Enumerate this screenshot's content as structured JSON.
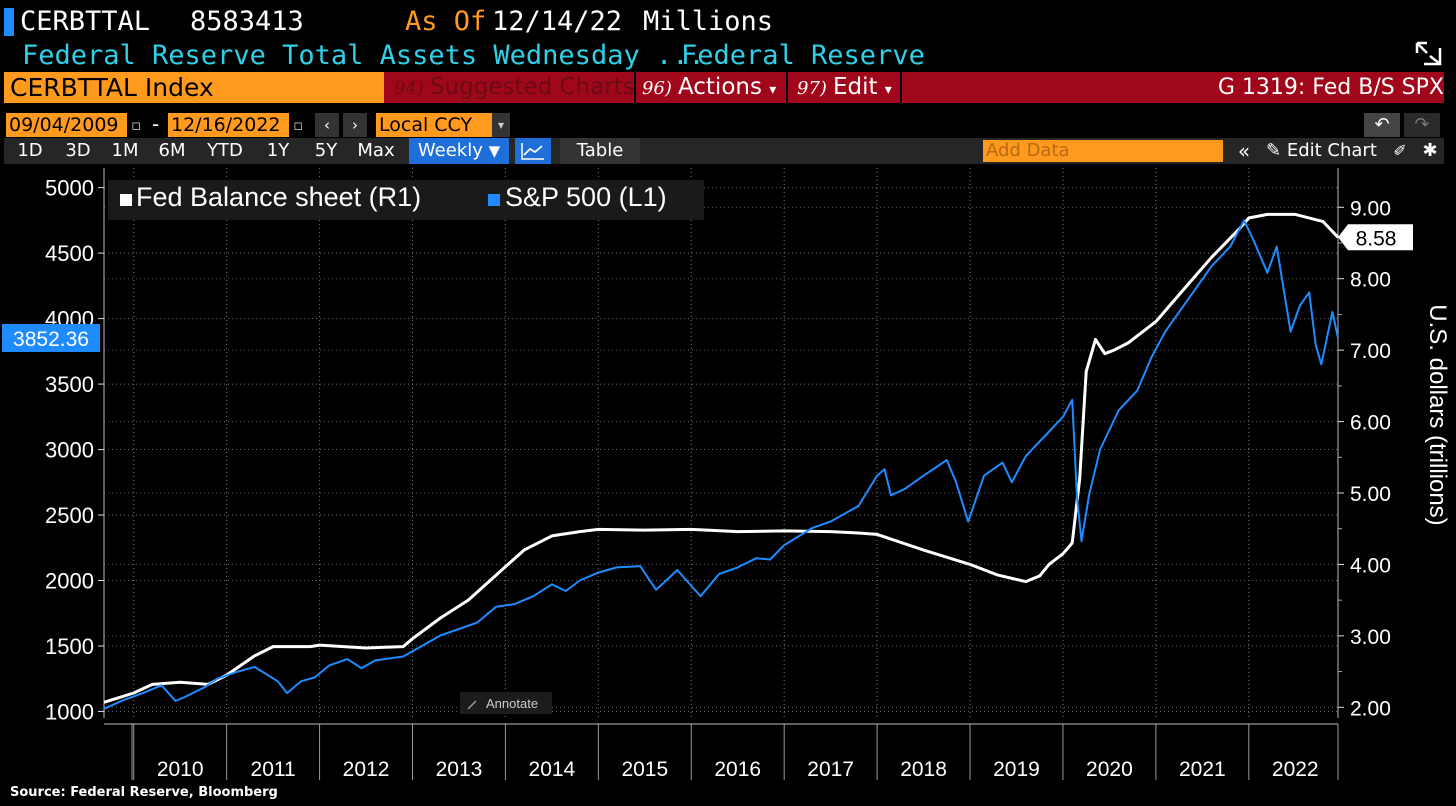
{
  "header": {
    "ticker": "CERBTTAL",
    "value": "8583413",
    "asof_label": "As Of",
    "asof_date": "12/14/22",
    "units": "Millions",
    "description": "Federal Reserve Total Assets Wednesday ...",
    "source_name": "Federal Reserve"
  },
  "toolbar": {
    "index_label": "CERBTTAL Index",
    "suggested_num": "94)",
    "suggested_label": "Suggested Charts",
    "actions_num": "96)",
    "actions_label": "Actions",
    "edit_num": "97)",
    "edit_label": "Edit",
    "chart_title": "G 1319: Fed B/S SPX",
    "dropdown_glyph": "▾"
  },
  "range": {
    "start_date": "09/04/2009",
    "end_date": "12/16/2022",
    "dash": "-",
    "currency": "Local CCY"
  },
  "periods": [
    "1D",
    "3D",
    "1M",
    "6M",
    "YTD",
    "1Y",
    "5Y",
    "Max"
  ],
  "frequency": "Weekly",
  "frequency_glyph": "▼",
  "table_label": "Table",
  "add_data_placeholder": "Add Data",
  "edit_chart_label": "Edit Chart",
  "colors": {
    "accent_orange": "#ff9a1f",
    "banner_red": "#a1071b",
    "cyan": "#2fd0e8",
    "spx_blue": "#1e8cff",
    "fed_white": "#ffffff"
  },
  "footer": "Source: Federal Reserve, Bloomberg",
  "chart_data": {
    "type": "line",
    "legend": [
      "Fed Balance sheet (R1)",
      "S&P 500 (L1)"
    ],
    "legend_position": "top-left",
    "grid": true,
    "x_labels": [
      "2010",
      "2011",
      "2012",
      "2013",
      "2014",
      "2015",
      "2016",
      "2017",
      "2018",
      "2019",
      "2020",
      "2021",
      "2022"
    ],
    "x_range": [
      2009.68,
      2022.96
    ],
    "left_axis": {
      "ylim": [
        950,
        5150
      ],
      "ticks": [
        1000,
        1500,
        2000,
        2500,
        3000,
        3500,
        4000,
        4500,
        5000
      ]
    },
    "right_axis": {
      "label": "U.S. dollars (trillions)",
      "ylim": [
        1.85,
        9.55
      ],
      "ticks": [
        2.0,
        3.0,
        4.0,
        5.0,
        6.0,
        7.0,
        8.0,
        9.0
      ],
      "tick_labels": [
        "2.00",
        "3.00",
        "4.00",
        "5.00",
        "6.00",
        "7.00",
        "8.00",
        "9.00"
      ]
    },
    "last_value_left": "3852.36",
    "last_value_right": "8.58",
    "annotate_label": "Annotate",
    "series": [
      {
        "name": "Fed Balance sheet (R1)",
        "axis": "right",
        "x": [
          2009.68,
          2010.0,
          2010.2,
          2010.5,
          2010.8,
          2011.0,
          2011.3,
          2011.5,
          2011.9,
          2012.0,
          2012.5,
          2012.9,
          2013.0,
          2013.3,
          2013.6,
          2013.9,
          2014.2,
          2014.5,
          2014.8,
          2015.0,
          2015.5,
          2016.0,
          2016.5,
          2017.0,
          2017.5,
          2017.8,
          2018.0,
          2018.5,
          2019.0,
          2019.3,
          2019.6,
          2019.75,
          2019.85,
          2019.95,
          2020.0,
          2020.1,
          2020.18,
          2020.25,
          2020.35,
          2020.45,
          2020.55,
          2020.7,
          2021.0,
          2021.3,
          2021.6,
          2021.9,
          2022.0,
          2022.2,
          2022.5,
          2022.8,
          2022.96
        ],
        "y": [
          2.07,
          2.2,
          2.32,
          2.35,
          2.32,
          2.45,
          2.72,
          2.85,
          2.85,
          2.87,
          2.83,
          2.85,
          2.96,
          3.25,
          3.5,
          3.85,
          4.2,
          4.4,
          4.46,
          4.49,
          4.48,
          4.49,
          4.46,
          4.47,
          4.46,
          4.44,
          4.42,
          4.2,
          4.0,
          3.85,
          3.76,
          3.84,
          4.0,
          4.1,
          4.15,
          4.3,
          5.2,
          6.7,
          7.15,
          6.95,
          7.0,
          7.1,
          7.4,
          7.85,
          8.3,
          8.7,
          8.85,
          8.9,
          8.9,
          8.8,
          8.58
        ]
      },
      {
        "name": "S&P 500 (L1)",
        "axis": "left",
        "x": [
          2009.68,
          2009.9,
          2010.1,
          2010.3,
          2010.45,
          2010.55,
          2010.75,
          2010.9,
          2011.1,
          2011.3,
          2011.55,
          2011.65,
          2011.8,
          2011.95,
          2012.1,
          2012.3,
          2012.45,
          2012.6,
          2012.8,
          2012.9,
          2013.1,
          2013.3,
          2013.5,
          2013.7,
          2013.9,
          2014.1,
          2014.3,
          2014.5,
          2014.65,
          2014.8,
          2015.0,
          2015.2,
          2015.45,
          2015.62,
          2015.7,
          2015.85,
          2016.05,
          2016.1,
          2016.3,
          2016.5,
          2016.7,
          2016.85,
          2017.0,
          2017.3,
          2017.5,
          2017.8,
          2018.0,
          2018.08,
          2018.15,
          2018.3,
          2018.5,
          2018.75,
          2018.85,
          2018.98,
          2019.15,
          2019.35,
          2019.45,
          2019.6,
          2019.8,
          2020.0,
          2020.1,
          2020.15,
          2020.2,
          2020.28,
          2020.4,
          2020.6,
          2020.8,
          2020.95,
          2021.1,
          2021.4,
          2021.6,
          2021.8,
          2021.95,
          2022.05,
          2022.2,
          2022.3,
          2022.45,
          2022.55,
          2022.65,
          2022.72,
          2022.78,
          2022.9,
          2022.96
        ],
        "y": [
          1020,
          1090,
          1140,
          1200,
          1080,
          1110,
          1180,
          1250,
          1300,
          1340,
          1230,
          1140,
          1230,
          1260,
          1350,
          1400,
          1330,
          1390,
          1410,
          1420,
          1500,
          1580,
          1630,
          1680,
          1800,
          1820,
          1880,
          1970,
          1920,
          2000,
          2060,
          2100,
          2110,
          1930,
          1980,
          2080,
          1920,
          1880,
          2050,
          2100,
          2170,
          2160,
          2270,
          2400,
          2450,
          2570,
          2800,
          2850,
          2650,
          2700,
          2800,
          2920,
          2750,
          2450,
          2800,
          2900,
          2750,
          2950,
          3100,
          3250,
          3380,
          2650,
          2300,
          2650,
          3000,
          3300,
          3450,
          3700,
          3900,
          4200,
          4400,
          4550,
          4750,
          4600,
          4350,
          4550,
          3900,
          4100,
          4200,
          3800,
          3650,
          4050,
          3852
        ]
      }
    ]
  }
}
